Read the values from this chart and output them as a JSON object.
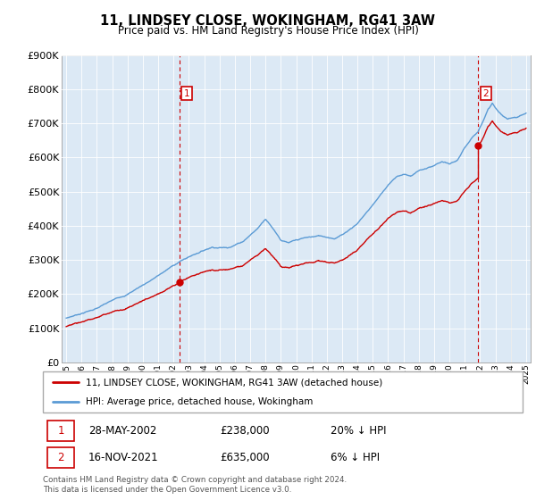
{
  "title": "11, LINDSEY CLOSE, WOKINGHAM, RG41 3AW",
  "subtitle": "Price paid vs. HM Land Registry's House Price Index (HPI)",
  "hpi_color": "#5b9bd5",
  "hpi_fill_color": "#dce9f5",
  "price_color": "#cc0000",
  "bg_color": "#dce9f5",
  "ylim": [
    0,
    900000
  ],
  "yticks": [
    0,
    100000,
    200000,
    300000,
    400000,
    500000,
    600000,
    700000,
    800000,
    900000
  ],
  "ytick_labels": [
    "£0",
    "£100K",
    "£200K",
    "£300K",
    "£400K",
    "£500K",
    "£600K",
    "£700K",
    "£800K",
    "£900K"
  ],
  "legend_label_price": "11, LINDSEY CLOSE, WOKINGHAM, RG41 3AW (detached house)",
  "legend_label_hpi": "HPI: Average price, detached house, Wokingham",
  "annotation1_date": "28-MAY-2002",
  "annotation1_price": "£238,000",
  "annotation1_pct": "20% ↓ HPI",
  "annotation2_date": "16-NOV-2021",
  "annotation2_price": "£635,000",
  "annotation2_pct": "6% ↓ HPI",
  "footer": "Contains HM Land Registry data © Crown copyright and database right 2024.\nThis data is licensed under the Open Government Licence v3.0.",
  "sale1_x": 2002.38,
  "sale1_y": 238000,
  "sale2_x": 2021.88,
  "sale2_y": 635000,
  "xlim_left": 1994.7,
  "xlim_right": 2025.3,
  "hatch_start": 2024.0
}
